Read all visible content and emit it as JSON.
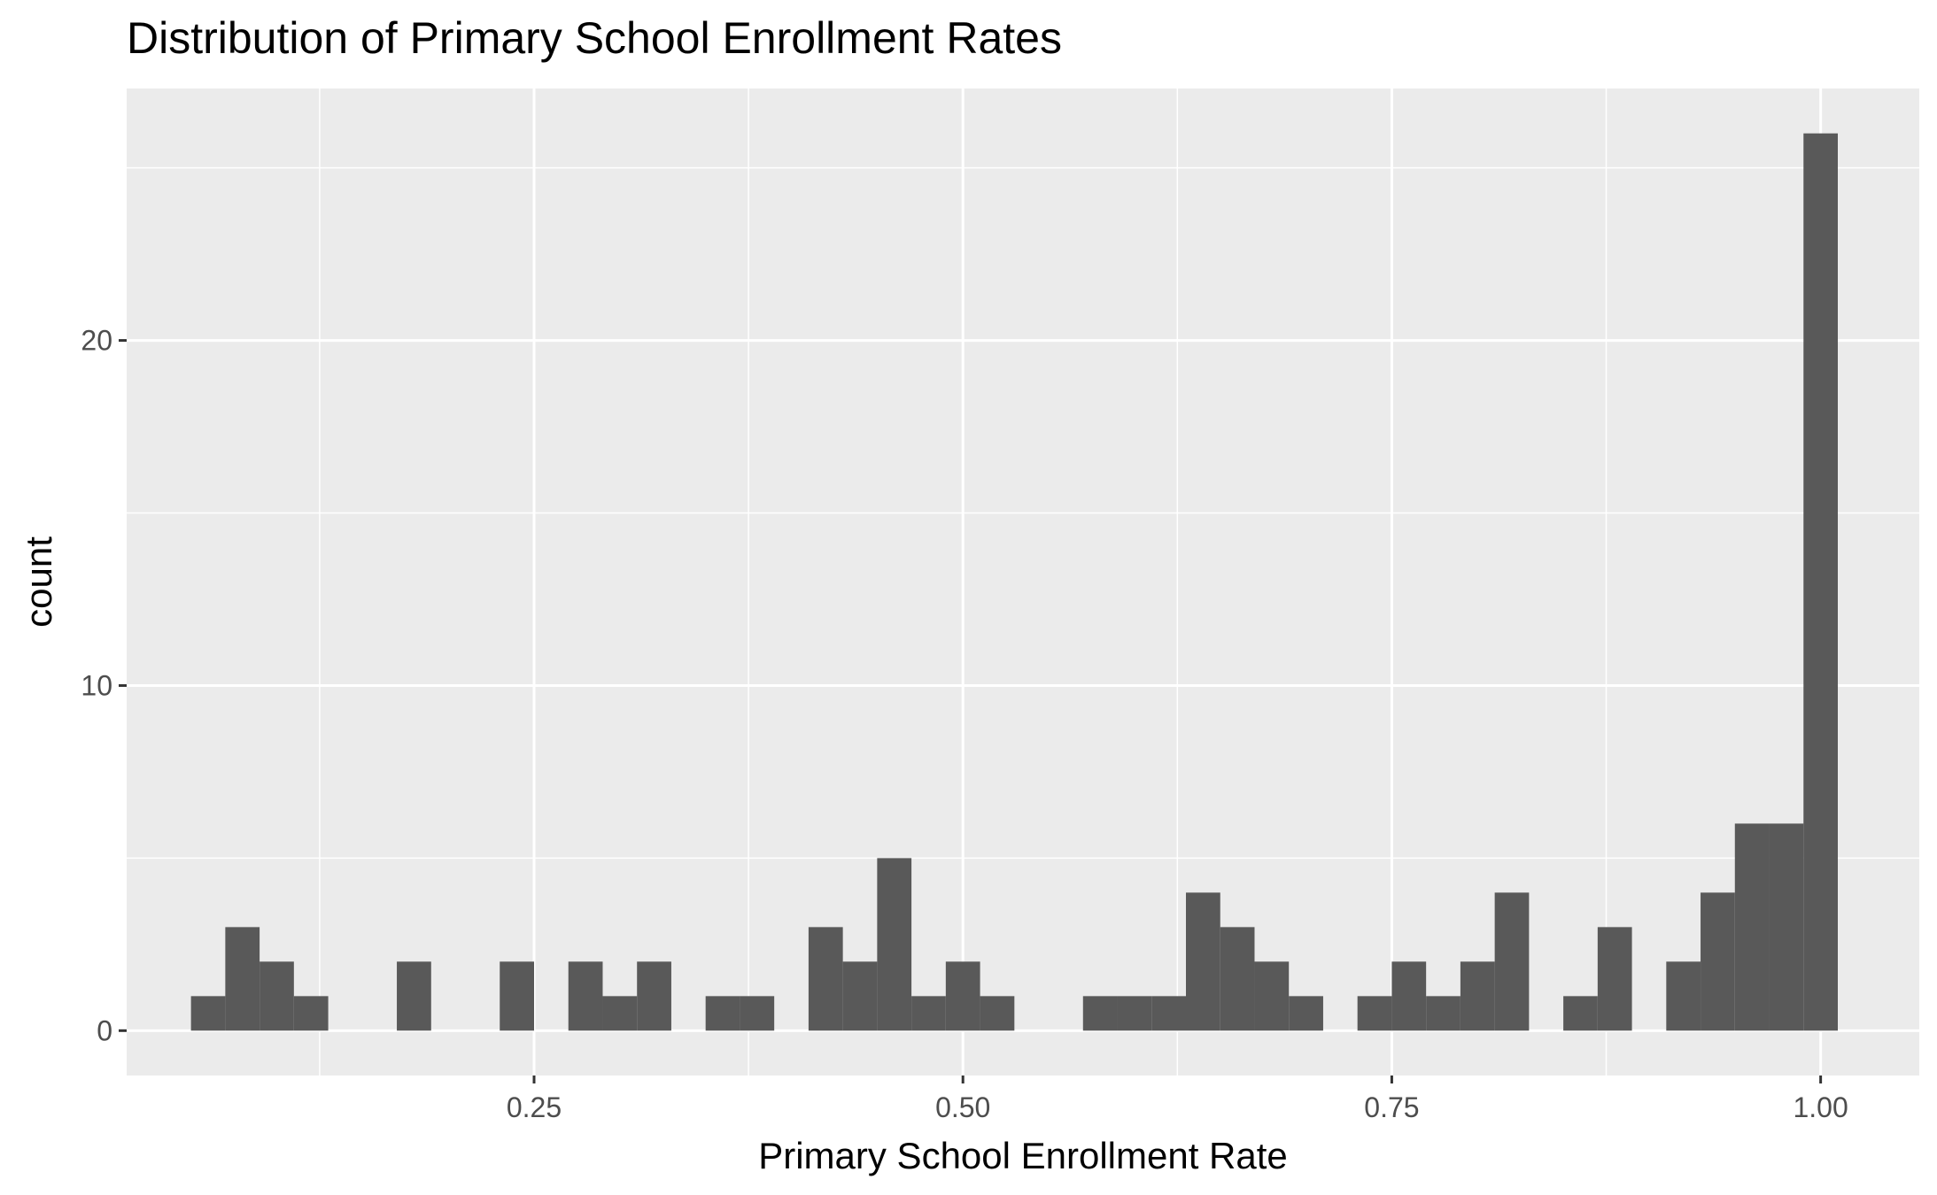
{
  "chart_data": {
    "type": "bar",
    "subtype": "histogram",
    "title": "Distribution of Primary School Enrollment Rates",
    "xlabel": "Primary School Enrollment Rate",
    "ylabel": "count",
    "xlim": [
      0.0125,
      1.0575
    ],
    "ylim": [
      -1.3,
      27.3
    ],
    "x_ticks": [
      0.25,
      0.5,
      0.75,
      1.0
    ],
    "x_tick_labels": [
      "0.25",
      "0.50",
      "0.75",
      "1.00"
    ],
    "y_ticks": [
      0,
      10,
      20
    ],
    "y_tick_labels": [
      "0",
      "10",
      "20"
    ],
    "bin_width": 0.02,
    "bins": [
      {
        "x0": 0.05,
        "x1": 0.07,
        "count": 1
      },
      {
        "x0": 0.07,
        "x1": 0.09,
        "count": 3
      },
      {
        "x0": 0.09,
        "x1": 0.11,
        "count": 2
      },
      {
        "x0": 0.11,
        "x1": 0.13,
        "count": 1
      },
      {
        "x0": 0.17,
        "x1": 0.19,
        "count": 2
      },
      {
        "x0": 0.23,
        "x1": 0.25,
        "count": 2
      },
      {
        "x0": 0.27,
        "x1": 0.29,
        "count": 2
      },
      {
        "x0": 0.29,
        "x1": 0.31,
        "count": 1
      },
      {
        "x0": 0.31,
        "x1": 0.33,
        "count": 2
      },
      {
        "x0": 0.35,
        "x1": 0.37,
        "count": 1
      },
      {
        "x0": 0.37,
        "x1": 0.39,
        "count": 1
      },
      {
        "x0": 0.41,
        "x1": 0.43,
        "count": 3
      },
      {
        "x0": 0.43,
        "x1": 0.45,
        "count": 2
      },
      {
        "x0": 0.45,
        "x1": 0.47,
        "count": 5
      },
      {
        "x0": 0.47,
        "x1": 0.49,
        "count": 1
      },
      {
        "x0": 0.49,
        "x1": 0.51,
        "count": 2
      },
      {
        "x0": 0.51,
        "x1": 0.53,
        "count": 1
      },
      {
        "x0": 0.57,
        "x1": 0.59,
        "count": 1
      },
      {
        "x0": 0.59,
        "x1": 0.61,
        "count": 1
      },
      {
        "x0": 0.61,
        "x1": 0.63,
        "count": 1
      },
      {
        "x0": 0.63,
        "x1": 0.65,
        "count": 4
      },
      {
        "x0": 0.65,
        "x1": 0.67,
        "count": 3
      },
      {
        "x0": 0.67,
        "x1": 0.69,
        "count": 2
      },
      {
        "x0": 0.69,
        "x1": 0.71,
        "count": 1
      },
      {
        "x0": 0.73,
        "x1": 0.75,
        "count": 1
      },
      {
        "x0": 0.75,
        "x1": 0.77,
        "count": 2
      },
      {
        "x0": 0.77,
        "x1": 0.79,
        "count": 1
      },
      {
        "x0": 0.79,
        "x1": 0.81,
        "count": 2
      },
      {
        "x0": 0.81,
        "x1": 0.83,
        "count": 4
      },
      {
        "x0": 0.85,
        "x1": 0.87,
        "count": 1
      },
      {
        "x0": 0.87,
        "x1": 0.89,
        "count": 3
      },
      {
        "x0": 0.91,
        "x1": 0.93,
        "count": 2
      },
      {
        "x0": 0.93,
        "x1": 0.95,
        "count": 4
      },
      {
        "x0": 0.95,
        "x1": 0.97,
        "count": 6
      },
      {
        "x0": 0.97,
        "x1": 0.99,
        "count": 6
      },
      {
        "x0": 0.99,
        "x1": 1.01,
        "count": 26
      }
    ],
    "grid": true,
    "colors": {
      "bar_fill": "#595959",
      "panel_background": "#ebebeb",
      "grid_line": "#ffffff"
    }
  }
}
